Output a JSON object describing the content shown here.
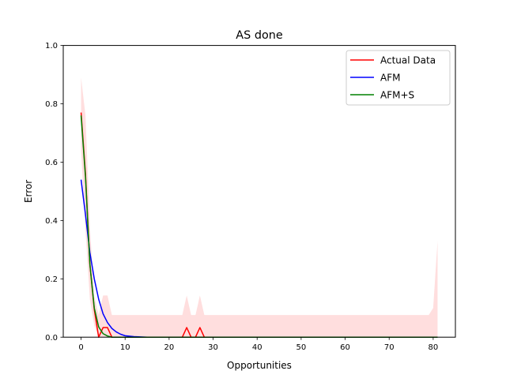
{
  "chart_data": {
    "type": "line",
    "title": "AS done",
    "xlabel": "Opportunities",
    "ylabel": "Error",
    "xlim": [
      -4.05,
      85.05
    ],
    "ylim": [
      0,
      1.0
    ],
    "xticks": [
      0,
      10,
      20,
      30,
      40,
      50,
      60,
      70,
      80
    ],
    "yticks": [
      0.0,
      0.2,
      0.4,
      0.6,
      0.8,
      1.0
    ],
    "xtick_labels": [
      "0",
      "10",
      "20",
      "30",
      "40",
      "50",
      "60",
      "70",
      "80"
    ],
    "ytick_labels": [
      "0.0",
      "0.2",
      "0.4",
      "0.6",
      "0.8",
      "1.0"
    ],
    "grid": false,
    "legend_position": "upper right",
    "band": {
      "color": "#ffdede",
      "upper": [
        [
          0,
          0.89
        ],
        [
          1,
          0.76
        ],
        [
          2,
          0.38
        ],
        [
          3,
          0.14
        ],
        [
          4,
          0.076
        ],
        [
          5,
          0.143
        ],
        [
          6,
          0.143
        ],
        [
          7,
          0.076
        ],
        [
          23,
          0.076
        ],
        [
          24,
          0.143
        ],
        [
          25,
          0.076
        ],
        [
          26,
          0.076
        ],
        [
          27,
          0.143
        ],
        [
          28,
          0.076
        ],
        [
          79,
          0.076
        ],
        [
          80,
          0.1
        ],
        [
          81,
          0.33
        ]
      ],
      "lower": [
        [
          0,
          0.64
        ],
        [
          1,
          0.37
        ],
        [
          2,
          0.13
        ],
        [
          3,
          0.04
        ],
        [
          4,
          0.0
        ],
        [
          81,
          0.0
        ]
      ]
    },
    "series": [
      {
        "name": "Actual Data",
        "color": "#ff0000",
        "points": [
          [
            0,
            0.77
          ],
          [
            1,
            0.56
          ],
          [
            2,
            0.25
          ],
          [
            3,
            0.095
          ],
          [
            4,
            0.0
          ],
          [
            5,
            0.033
          ],
          [
            6,
            0.033
          ],
          [
            7,
            0.0
          ],
          [
            23,
            0.0
          ],
          [
            24,
            0.033
          ],
          [
            25,
            0.0
          ],
          [
            26,
            0.0
          ],
          [
            27,
            0.033
          ],
          [
            28,
            0.0
          ],
          [
            81,
            0.0
          ]
        ]
      },
      {
        "name": "AFM",
        "color": "#0000ff",
        "points": [
          [
            0,
            0.54
          ],
          [
            1,
            0.42
          ],
          [
            2,
            0.29
          ],
          [
            3,
            0.2
          ],
          [
            4,
            0.13
          ],
          [
            5,
            0.08
          ],
          [
            6,
            0.05
          ],
          [
            7,
            0.03
          ],
          [
            8,
            0.018
          ],
          [
            9,
            0.01
          ],
          [
            10,
            0.005
          ],
          [
            12,
            0.002
          ],
          [
            15,
            0.0
          ],
          [
            81,
            0.0
          ]
        ]
      },
      {
        "name": "AFM+S",
        "color": "#008000",
        "points": [
          [
            0,
            0.76
          ],
          [
            1,
            0.55
          ],
          [
            2,
            0.25
          ],
          [
            3,
            0.1
          ],
          [
            4,
            0.035
          ],
          [
            5,
            0.012
          ],
          [
            6,
            0.004
          ],
          [
            7,
            0.0
          ],
          [
            81,
            0.0
          ]
        ]
      }
    ]
  }
}
